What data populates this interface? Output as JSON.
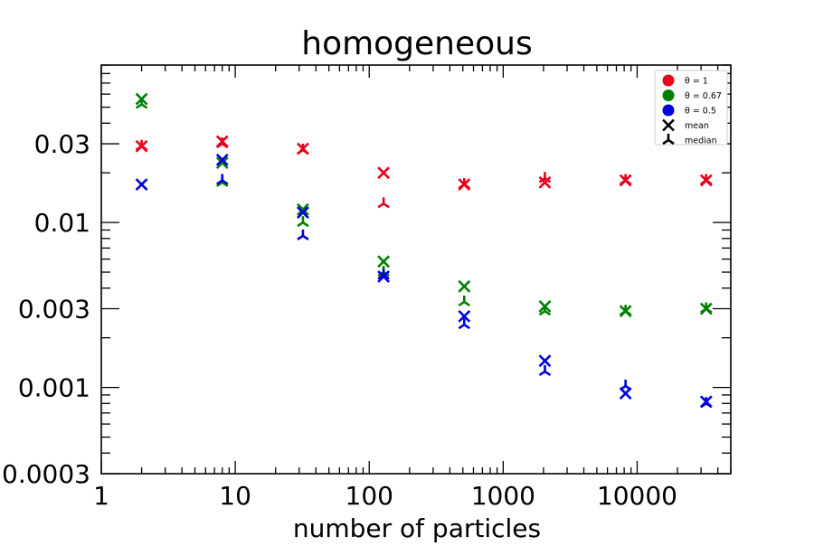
{
  "chart_data": {
    "type": "scatter",
    "title": "homogeneous",
    "xlabel": "number of particles",
    "ylabel": "",
    "xscale": "log",
    "yscale": "log",
    "xlim": [
      1,
      50000
    ],
    "ylim": [
      0.0003,
      0.09
    ],
    "xticks": [
      {
        "value": 1,
        "label": "1"
      },
      {
        "value": 10,
        "label": "10"
      },
      {
        "value": 100,
        "label": "100"
      },
      {
        "value": 1000,
        "label": "1000"
      },
      {
        "value": 10000,
        "label": "10000"
      }
    ],
    "yticks": [
      {
        "value": 0.0003,
        "label": "0.0003"
      },
      {
        "value": 0.001,
        "label": "0.001"
      },
      {
        "value": 0.003,
        "label": "0.003"
      },
      {
        "value": 0.01,
        "label": "0.01"
      },
      {
        "value": 0.03,
        "label": "0.03"
      }
    ],
    "grid": false,
    "legend_position": "top-right",
    "series": [
      {
        "name": "θ = 1",
        "color": "#e8001c",
        "x": [
          2,
          8,
          32,
          128,
          512,
          2048,
          8192,
          32768
        ],
        "mean": [
          0.029,
          0.031,
          0.028,
          0.02,
          0.017,
          0.0175,
          0.018,
          0.018
        ],
        "median": [
          0.029,
          0.03,
          0.0275,
          0.013,
          0.017,
          0.0185,
          0.018,
          0.018
        ]
      },
      {
        "name": "θ = 0.67",
        "color": "#008000",
        "x": [
          2,
          8,
          32,
          128,
          512,
          2048,
          8192,
          32768
        ],
        "mean": [
          0.056,
          0.023,
          0.012,
          0.0058,
          0.0041,
          0.0031,
          0.0029,
          0.003
        ],
        "median": [
          0.052,
          0.0175,
          0.01,
          0.005,
          0.0033,
          0.0029,
          0.0029,
          0.003
        ]
      },
      {
        "name": "θ = 0.5",
        "color": "#0000e0",
        "x": [
          2,
          8,
          32,
          128,
          512,
          2048,
          8192,
          32768
        ],
        "mean": [
          0.017,
          0.024,
          0.0115,
          0.0047,
          0.0027,
          0.00145,
          0.00092,
          0.00082
        ],
        "median": [
          null,
          0.018,
          0.0083,
          0.0048,
          0.0024,
          0.00125,
          0.00102,
          0.0008
        ]
      }
    ],
    "legend": {
      "series_labels": [
        "θ = 1",
        "θ = 0.67",
        "θ = 0.5"
      ],
      "marker_labels": [
        {
          "label": "mean",
          "marker": "x-icon"
        },
        {
          "label": "median",
          "marker": "tri-down-icon"
        }
      ]
    }
  }
}
